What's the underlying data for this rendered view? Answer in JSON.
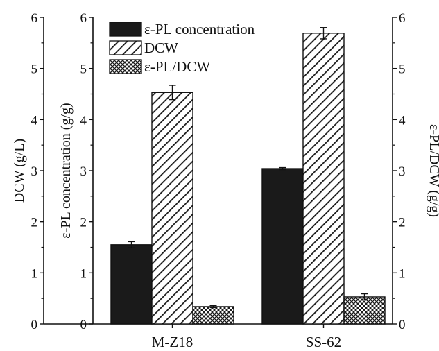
{
  "chart_data": {
    "type": "bar",
    "categories": [
      "M-Z18",
      "SS-62"
    ],
    "series": [
      {
        "name": "ε-PL concentration",
        "values": [
          1.55,
          3.04
        ],
        "errors": [
          0.06,
          0.02
        ],
        "fill": "solid",
        "color": "#1a1a1a",
        "axis": "inner-left"
      },
      {
        "name": "DCW",
        "values": [
          4.53,
          5.69
        ],
        "errors": [
          0.14,
          0.11
        ],
        "fill": "diagonal-hatch",
        "color": "#1a1a1a",
        "axis": "left"
      },
      {
        "name": "ε-PL/DCW",
        "values": [
          0.34,
          0.53
        ],
        "errors": [
          0.02,
          0.06
        ],
        "fill": "cross-hatch",
        "color": "#1a1a1a",
        "axis": "right"
      }
    ],
    "axes": {
      "left": {
        "label": "DCW (g/L)",
        "ylim": [
          0,
          6
        ],
        "ticks": [
          "0",
          "1",
          "2",
          "3",
          "4",
          "5",
          "6"
        ]
      },
      "inner_left": {
        "label": "ε-PL concentration (g/g)",
        "ylim": [
          0,
          6
        ],
        "ticks": [
          "0",
          "1",
          "2",
          "3",
          "4",
          "5",
          "6"
        ]
      },
      "right": {
        "label": "ε-PL/DCW (g/g)",
        "ylim": [
          0,
          6
        ],
        "ticks": [
          "0",
          "1",
          "2",
          "3",
          "4",
          "5",
          "6"
        ]
      }
    },
    "legend": {
      "placement": "top-left"
    },
    "grid": false
  }
}
